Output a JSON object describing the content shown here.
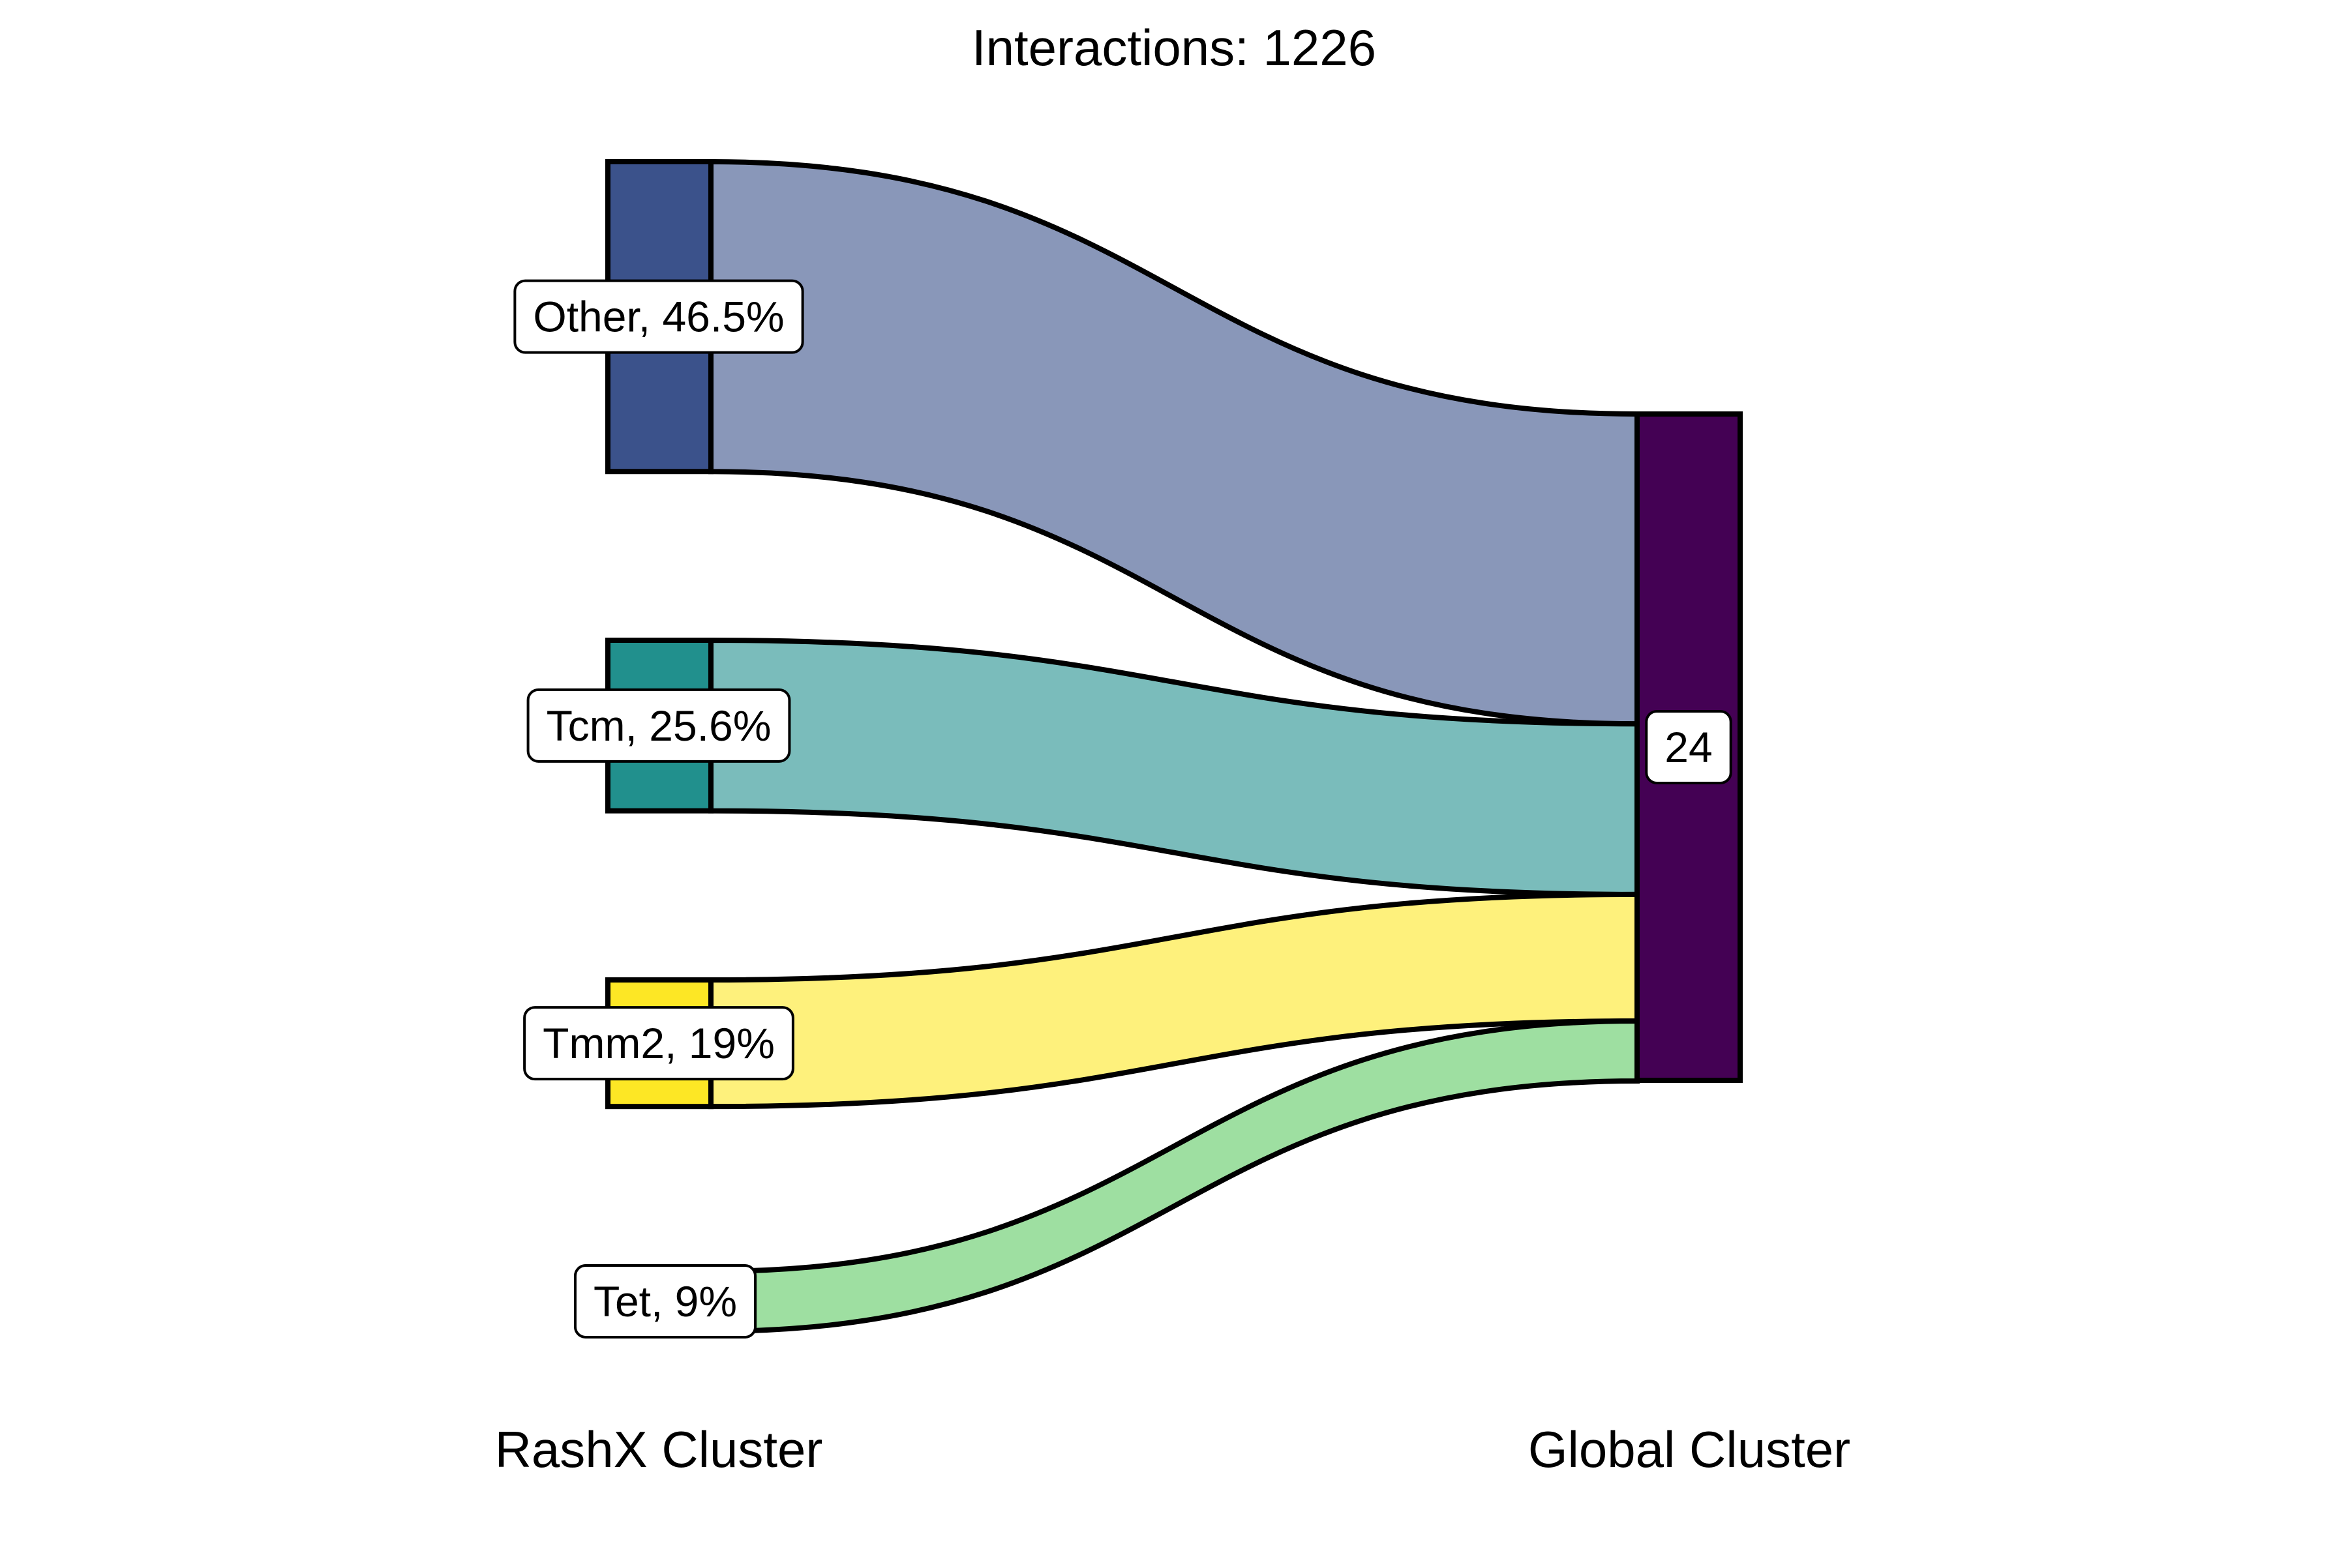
{
  "chart_data": {
    "type": "sankey",
    "title": "Interactions: 1226",
    "axes": [
      "RashX Cluster",
      "Global Cluster"
    ],
    "nodes": {
      "left": [
        {
          "id": "other",
          "label": "Other, 46.5%",
          "pct": 46.5,
          "color": "#3b528b"
        },
        {
          "id": "tcm",
          "label": "Tcm, 25.6%",
          "pct": 25.6,
          "color": "#21908d"
        },
        {
          "id": "tmm2",
          "label": "Tmm2, 19%",
          "pct": 19.0,
          "color": "#fde725"
        },
        {
          "id": "tet",
          "label": "Tet, 9%",
          "pct": 9.0,
          "color": "#5dc963"
        }
      ],
      "right": [
        {
          "id": "c24",
          "label": "24",
          "pct": 100,
          "color": "#440154"
        }
      ]
    },
    "flows": [
      {
        "source": "other",
        "target": "c24",
        "pct": 46.5
      },
      {
        "source": "tcm",
        "target": "c24",
        "pct": 25.6
      },
      {
        "source": "tmm2",
        "target": "c24",
        "pct": 19.0
      },
      {
        "source": "tet",
        "target": "c24",
        "pct": 9.0
      }
    ]
  }
}
